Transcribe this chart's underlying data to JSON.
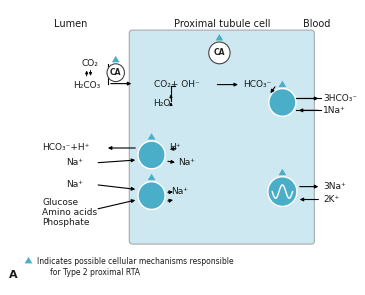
{
  "bg_color": "#ffffff",
  "cell_bg": "#cde8f0",
  "teal": "#4aaec9",
  "dark": "#1a1a1a",
  "title_lumen": "Lumen",
  "title_cell": "Proximal tubule cell",
  "title_blood": "Blood"
}
